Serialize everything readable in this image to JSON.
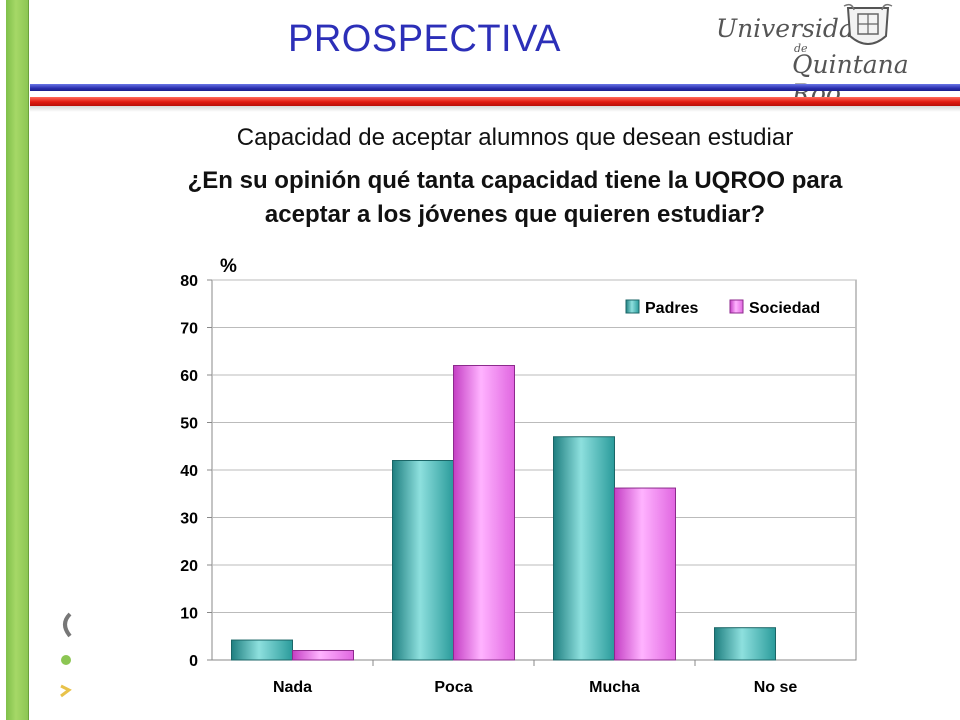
{
  "slide": {
    "title": "PROSPECTIVA",
    "logo_line1": "Universidad",
    "logo_de": "de",
    "logo_line2": "Quintana Roo"
  },
  "subtitle": "Capacidad de aceptar alumnos que desean estudiar",
  "question_line1": "¿En su opinión qué tanta capacidad tiene la UQROO para",
  "question_line2": "aceptar a los jóvenes que quieren estudiar?",
  "colors": {
    "title": "#2c2fb8",
    "padres": "#33a9a9",
    "sociedad": "#f07df0",
    "green_bar": "#8cc653",
    "rule_blue": "#2a2fae",
    "rule_red": "#e01a10"
  },
  "chart_data": {
    "type": "bar",
    "ylabel": "%",
    "categories": [
      "Nada",
      "Poca",
      "Mucha",
      "No se"
    ],
    "series": [
      {
        "name": "Padres",
        "values": [
          4.2,
          42,
          47,
          6.8
        ]
      },
      {
        "name": "Sociedad",
        "values": [
          2,
          62,
          36.2,
          null
        ]
      }
    ],
    "ylim": [
      0,
      80
    ],
    "yticks": [
      "0",
      "10",
      "20",
      "30",
      "40",
      "50",
      "60",
      "70",
      "80"
    ],
    "grid": true,
    "legend": "top-right"
  }
}
